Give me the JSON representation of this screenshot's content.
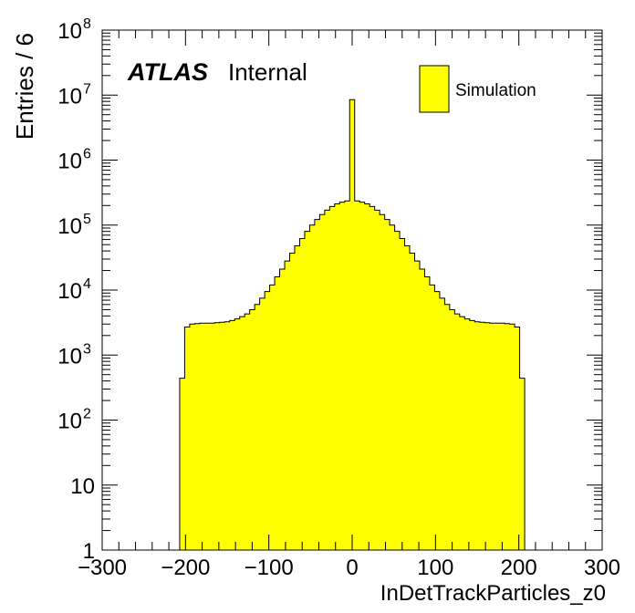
{
  "colors": {
    "fill": "#ffff00",
    "line": "#000000",
    "background": "#ffffff"
  },
  "labels": {
    "atlas": "ATLAS",
    "internal": "Internal",
    "ylabel": "Entries / 6",
    "xlabel": "InDetTrackParticles_z0"
  },
  "chart_data": {
    "type": "bar",
    "title": "",
    "xlabel": "InDetTrackParticles_z0",
    "ylabel": "Entries / 6",
    "xlim": [
      -300,
      300
    ],
    "ylim": [
      1,
      100000000
    ],
    "yscale": "log",
    "x_ticks": [
      {
        "value": -300,
        "label": "−300"
      },
      {
        "value": -200,
        "label": "−200"
      },
      {
        "value": -100,
        "label": "−100"
      },
      {
        "value": 0,
        "label": "0"
      },
      {
        "value": 100,
        "label": "100"
      },
      {
        "value": 200,
        "label": "200"
      },
      {
        "value": 300,
        "label": "300"
      }
    ],
    "y_ticks": [
      {
        "value": 1,
        "base": "1",
        "exp": ""
      },
      {
        "value": 10,
        "base": "10",
        "exp": ""
      },
      {
        "value": 100,
        "base": "10",
        "exp": "2"
      },
      {
        "value": 1000,
        "base": "10",
        "exp": "3"
      },
      {
        "value": 10000,
        "base": "10",
        "exp": "4"
      },
      {
        "value": 100000,
        "base": "10",
        "exp": "5"
      },
      {
        "value": 1000000,
        "base": "10",
        "exp": "6"
      },
      {
        "value": 10000000,
        "base": "10",
        "exp": "7"
      },
      {
        "value": 100000000,
        "base": "10",
        "exp": "8"
      }
    ],
    "legend": {
      "position": "top-right",
      "entries": [
        "Simulation"
      ]
    },
    "grid": false,
    "series": [
      {
        "name": "Simulation",
        "bin_width": 6,
        "bins": [
          {
            "x": -204,
            "y": 440
          },
          {
            "x": -198,
            "y": 2700
          },
          {
            "x": -192,
            "y": 3000
          },
          {
            "x": -186,
            "y": 3050
          },
          {
            "x": -180,
            "y": 3100
          },
          {
            "x": -174,
            "y": 3100
          },
          {
            "x": -168,
            "y": 3100
          },
          {
            "x": -162,
            "y": 3150
          },
          {
            "x": -156,
            "y": 3200
          },
          {
            "x": -150,
            "y": 3250
          },
          {
            "x": -144,
            "y": 3400
          },
          {
            "x": -138,
            "y": 3600
          },
          {
            "x": -132,
            "y": 3900
          },
          {
            "x": -126,
            "y": 4300
          },
          {
            "x": -120,
            "y": 5000
          },
          {
            "x": -114,
            "y": 6000
          },
          {
            "x": -108,
            "y": 7500
          },
          {
            "x": -102,
            "y": 9500
          },
          {
            "x": -96,
            "y": 12000
          },
          {
            "x": -90,
            "y": 16000
          },
          {
            "x": -84,
            "y": 21000
          },
          {
            "x": -78,
            "y": 28000
          },
          {
            "x": -72,
            "y": 37000
          },
          {
            "x": -66,
            "y": 48000
          },
          {
            "x": -60,
            "y": 62000
          },
          {
            "x": -54,
            "y": 80000
          },
          {
            "x": -48,
            "y": 100000
          },
          {
            "x": -42,
            "y": 122000
          },
          {
            "x": -36,
            "y": 145000
          },
          {
            "x": -30,
            "y": 170000
          },
          {
            "x": -24,
            "y": 193000
          },
          {
            "x": -18,
            "y": 212000
          },
          {
            "x": -12,
            "y": 225000
          },
          {
            "x": -6,
            "y": 235000
          },
          {
            "x": 0,
            "y": 8500000
          },
          {
            "x": 6,
            "y": 235000
          },
          {
            "x": 12,
            "y": 225000
          },
          {
            "x": 18,
            "y": 212000
          },
          {
            "x": 24,
            "y": 193000
          },
          {
            "x": 30,
            "y": 170000
          },
          {
            "x": 36,
            "y": 145000
          },
          {
            "x": 42,
            "y": 122000
          },
          {
            "x": 48,
            "y": 100000
          },
          {
            "x": 54,
            "y": 80000
          },
          {
            "x": 60,
            "y": 62000
          },
          {
            "x": 66,
            "y": 48000
          },
          {
            "x": 72,
            "y": 37000
          },
          {
            "x": 78,
            "y": 28000
          },
          {
            "x": 84,
            "y": 21000
          },
          {
            "x": 90,
            "y": 16000
          },
          {
            "x": 96,
            "y": 12000
          },
          {
            "x": 102,
            "y": 9500
          },
          {
            "x": 108,
            "y": 7500
          },
          {
            "x": 114,
            "y": 6000
          },
          {
            "x": 120,
            "y": 5000
          },
          {
            "x": 126,
            "y": 4300
          },
          {
            "x": 132,
            "y": 3900
          },
          {
            "x": 138,
            "y": 3600
          },
          {
            "x": 144,
            "y": 3400
          },
          {
            "x": 150,
            "y": 3250
          },
          {
            "x": 156,
            "y": 3200
          },
          {
            "x": 162,
            "y": 3150
          },
          {
            "x": 168,
            "y": 3100
          },
          {
            "x": 174,
            "y": 3100
          },
          {
            "x": 180,
            "y": 3100
          },
          {
            "x": 186,
            "y": 3050
          },
          {
            "x": 192,
            "y": 3000
          },
          {
            "x": 198,
            "y": 2700
          },
          {
            "x": 204,
            "y": 440
          }
        ]
      }
    ]
  }
}
